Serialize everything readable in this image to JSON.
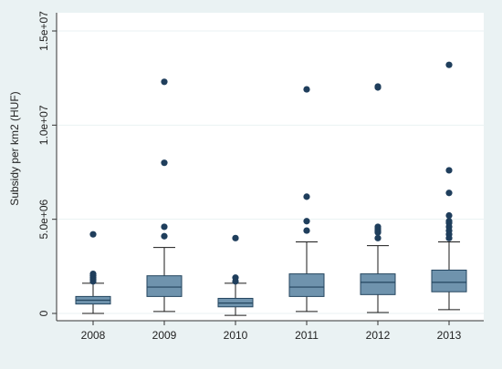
{
  "chart_data": {
    "type": "boxplot",
    "title": "",
    "xlabel": "",
    "ylabel": "Subsidy per km2 (HUF)",
    "ylim": [
      -100000,
      15000000
    ],
    "yticks": [
      {
        "value": 0,
        "label": "0"
      },
      {
        "value": 5000000,
        "label": "5.0e+06"
      },
      {
        "value": 10000000,
        "label": "1.0e+07"
      },
      {
        "value": 15000000,
        "label": "1.5e+07"
      }
    ],
    "grid": true,
    "categories": [
      "2008",
      "2009",
      "2010",
      "2011",
      "2012",
      "2013"
    ],
    "boxes": [
      {
        "category": "2008",
        "min": 0,
        "q1": 500000,
        "median": 700000,
        "q3": 900000,
        "max": 1600000,
        "outliers": [
          4200000,
          2100000,
          2000000,
          1900000,
          1800000,
          1700000
        ]
      },
      {
        "category": "2009",
        "min": 100000,
        "q1": 900000,
        "median": 1400000,
        "q3": 2000000,
        "max": 3500000,
        "outliers": [
          12300000,
          8000000,
          4600000,
          4100000
        ]
      },
      {
        "category": "2010",
        "min": -100000,
        "q1": 350000,
        "median": 550000,
        "q3": 800000,
        "max": 1600000,
        "outliers": [
          4000000,
          1900000,
          1700000
        ]
      },
      {
        "category": "2011",
        "min": 100000,
        "q1": 900000,
        "median": 1400000,
        "q3": 2100000,
        "max": 3800000,
        "outliers": [
          11900000,
          6200000,
          4900000,
          4400000
        ]
      },
      {
        "category": "2012",
        "min": 50000,
        "q1": 1000000,
        "median": 1650000,
        "q3": 2100000,
        "max": 3600000,
        "outliers": [
          12000000,
          12050000,
          4600000,
          4500000,
          4400000,
          4300000,
          4000000
        ]
      },
      {
        "category": "2013",
        "min": 200000,
        "q1": 1150000,
        "median": 1650000,
        "q3": 2300000,
        "max": 3800000,
        "outliers": [
          13200000,
          7600000,
          6400000,
          5200000,
          4900000,
          4800000,
          4600000,
          4400000,
          4200000,
          4000000
        ]
      }
    ],
    "colors": {
      "background": "#eaf2f3",
      "plot_background": "#ffffff",
      "box_fill": "#6f93ad",
      "box_stroke": "#24465f",
      "whisker": "#1a1a1a",
      "outlier": "#1f3e5c",
      "grid": "#eaf2f3"
    }
  }
}
